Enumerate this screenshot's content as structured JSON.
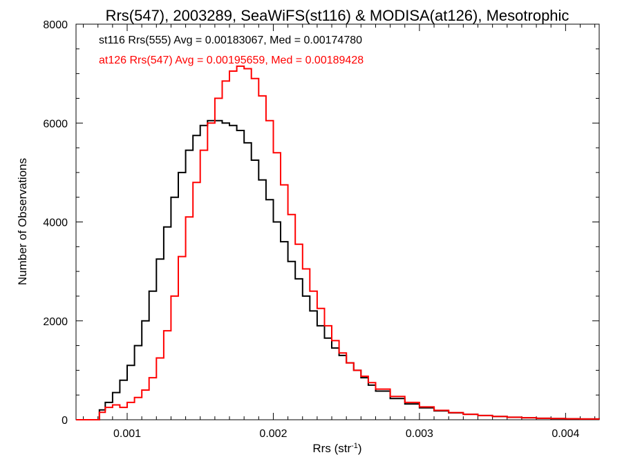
{
  "chart_data": {
    "type": "line",
    "title": "Rrs(547), 2003289, SeaWiFS(st116) & MODISA(at126), Mesotrophic",
    "xlabel_main": "Rrs (str",
    "xlabel_sup": "-1",
    "xlabel_close": ")",
    "ylabel": "Number of Observations",
    "xlim": [
      0.00065,
      0.00423
    ],
    "ylim": [
      0,
      8000
    ],
    "x_ticks": [
      {
        "value": 0.001,
        "label": "0.001"
      },
      {
        "value": 0.002,
        "label": "0.002"
      },
      {
        "value": 0.003,
        "label": "0.003"
      },
      {
        "value": 0.004,
        "label": "0.004"
      }
    ],
    "y_ticks": [
      {
        "value": 0,
        "label": "0"
      },
      {
        "value": 2000,
        "label": "2000"
      },
      {
        "value": 4000,
        "label": "4000"
      },
      {
        "value": 6000,
        "label": "6000"
      },
      {
        "value": 8000,
        "label": "8000"
      }
    ],
    "legend": [
      {
        "text": "st116 Rrs(555) Avg = 0.00183067, Med = 0.00174780",
        "color": "#000000"
      },
      {
        "text": "at126 Rrs(547) Avg = 0.00195659, Med = 0.00189428",
        "color": "#ff0000"
      }
    ],
    "series": [
      {
        "color": "#000000",
        "x": [
          0.00065,
          0.0008,
          0.00081,
          0.00085,
          0.0009,
          0.00095,
          0.001,
          0.00105,
          0.0011,
          0.00115,
          0.0012,
          0.00125,
          0.0013,
          0.00135,
          0.0014,
          0.00145,
          0.0015,
          0.00155,
          0.0016,
          0.00165,
          0.0017,
          0.00175,
          0.0018,
          0.00185,
          0.0019,
          0.00195,
          0.002,
          0.00205,
          0.0021,
          0.00215,
          0.0022,
          0.00225,
          0.0023,
          0.00235,
          0.0024,
          0.00245,
          0.0025,
          0.00255,
          0.0026,
          0.00265,
          0.0027,
          0.0028,
          0.0029,
          0.003,
          0.0031,
          0.0032,
          0.0033,
          0.0034,
          0.0035,
          0.0036,
          0.0037,
          0.0038,
          0.0039,
          0.004,
          0.0041,
          0.00423
        ],
        "y": [
          0,
          0,
          200,
          350,
          550,
          800,
          1100,
          1500,
          2000,
          2600,
          3250,
          3900,
          4500,
          5000,
          5450,
          5750,
          5950,
          6050,
          6050,
          6000,
          5950,
          5850,
          5600,
          5250,
          4850,
          4450,
          4000,
          3600,
          3200,
          2850,
          2500,
          2200,
          1900,
          1650,
          1450,
          1300,
          1150,
          1000,
          850,
          700,
          580,
          430,
          320,
          240,
          180,
          140,
          110,
          85,
          65,
          50,
          40,
          30,
          25,
          20,
          15,
          10
        ]
      },
      {
        "color": "#ff0000",
        "x": [
          0.00065,
          0.0008,
          0.00081,
          0.00085,
          0.0009,
          0.00095,
          0.001,
          0.00105,
          0.0011,
          0.00115,
          0.0012,
          0.00125,
          0.0013,
          0.00135,
          0.0014,
          0.00145,
          0.0015,
          0.00155,
          0.0016,
          0.00165,
          0.0017,
          0.00175,
          0.0018,
          0.00185,
          0.0019,
          0.00195,
          0.002,
          0.00205,
          0.0021,
          0.00215,
          0.0022,
          0.00225,
          0.0023,
          0.00235,
          0.0024,
          0.00245,
          0.0025,
          0.00255,
          0.0026,
          0.00265,
          0.0027,
          0.0028,
          0.0029,
          0.003,
          0.0031,
          0.0032,
          0.0033,
          0.0034,
          0.0035,
          0.0036,
          0.0037,
          0.0038,
          0.0039,
          0.004,
          0.0041,
          0.00423
        ],
        "y": [
          0,
          0,
          150,
          250,
          300,
          250,
          350,
          450,
          600,
          850,
          1250,
          1800,
          2500,
          3300,
          4100,
          4800,
          5450,
          6000,
          6500,
          6850,
          7050,
          7150,
          7100,
          6900,
          6550,
          6050,
          5400,
          4750,
          4150,
          3550,
          3050,
          2600,
          2250,
          1900,
          1600,
          1350,
          1150,
          1000,
          880,
          750,
          620,
          470,
          350,
          260,
          190,
          145,
          110,
          85,
          65,
          50,
          40,
          30,
          25,
          20,
          15,
          10
        ]
      }
    ]
  }
}
